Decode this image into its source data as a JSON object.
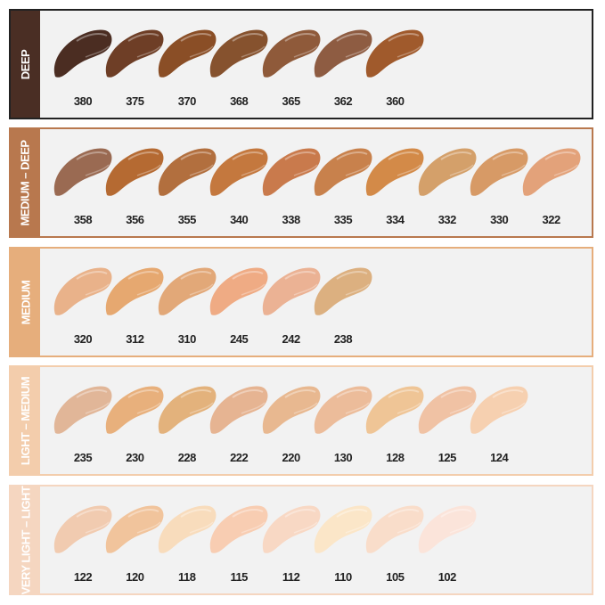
{
  "groups": [
    {
      "label": "DEEP",
      "color": "#4a2e24",
      "shades": [
        {
          "code": "380",
          "color": "#4b2d22"
        },
        {
          "code": "375",
          "color": "#6e3e26"
        },
        {
          "code": "370",
          "color": "#8a4e26"
        },
        {
          "code": "368",
          "color": "#86522e"
        },
        {
          "code": "365",
          "color": "#8f5a3a"
        },
        {
          "code": "362",
          "color": "#8e5c42"
        },
        {
          "code": "360",
          "color": "#a05a2c"
        }
      ]
    },
    {
      "label": "MEDIUM – DEEP",
      "color": "#b8784e",
      "shades": [
        {
          "code": "358",
          "color": "#9a6a52"
        },
        {
          "code": "356",
          "color": "#b56a32"
        },
        {
          "code": "355",
          "color": "#b26f3e"
        },
        {
          "code": "340",
          "color": "#c4783e"
        },
        {
          "code": "338",
          "color": "#c97a4c"
        },
        {
          "code": "335",
          "color": "#c8814c"
        },
        {
          "code": "334",
          "color": "#d38a48"
        },
        {
          "code": "332",
          "color": "#d4a06a"
        },
        {
          "code": "330",
          "color": "#d79a66"
        },
        {
          "code": "322",
          "color": "#e3a27a"
        }
      ]
    },
    {
      "label": "MEDIUM",
      "color": "#e6ae7c",
      "shades": [
        {
          "code": "320",
          "color": "#e9b28a"
        },
        {
          "code": "312",
          "color": "#e6a870"
        },
        {
          "code": "310",
          "color": "#e2a878"
        },
        {
          "code": "245",
          "color": "#efab84"
        },
        {
          "code": "242",
          "color": "#ebb294"
        },
        {
          "code": "238",
          "color": "#dcb080"
        }
      ]
    },
    {
      "label": "LIGHT – MEDIUM",
      "color": "#f3cdac",
      "shades": [
        {
          "code": "235",
          "color": "#e1b698"
        },
        {
          "code": "230",
          "color": "#e8b07c"
        },
        {
          "code": "228",
          "color": "#e3b27c"
        },
        {
          "code": "222",
          "color": "#e6b492"
        },
        {
          "code": "220",
          "color": "#e8b890"
        },
        {
          "code": "130",
          "color": "#ecbc9a"
        },
        {
          "code": "128",
          "color": "#efc596"
        },
        {
          "code": "125",
          "color": "#f0c2a4"
        },
        {
          "code": "124",
          "color": "#f6d0b0"
        }
      ]
    },
    {
      "label": "VERY LIGHT – LIGHT",
      "color": "#f5d6c0",
      "shades": [
        {
          "code": "122",
          "color": "#f1cbb0"
        },
        {
          "code": "120",
          "color": "#f1c49c"
        },
        {
          "code": "118",
          "color": "#f8dcbc"
        },
        {
          "code": "115",
          "color": "#f8cdb2"
        },
        {
          "code": "112",
          "color": "#f8d8c4"
        },
        {
          "code": "110",
          "color": "#fbe6c8"
        },
        {
          "code": "105",
          "color": "#f9ddca"
        },
        {
          "code": "102",
          "color": "#fbe4da"
        }
      ]
    }
  ]
}
